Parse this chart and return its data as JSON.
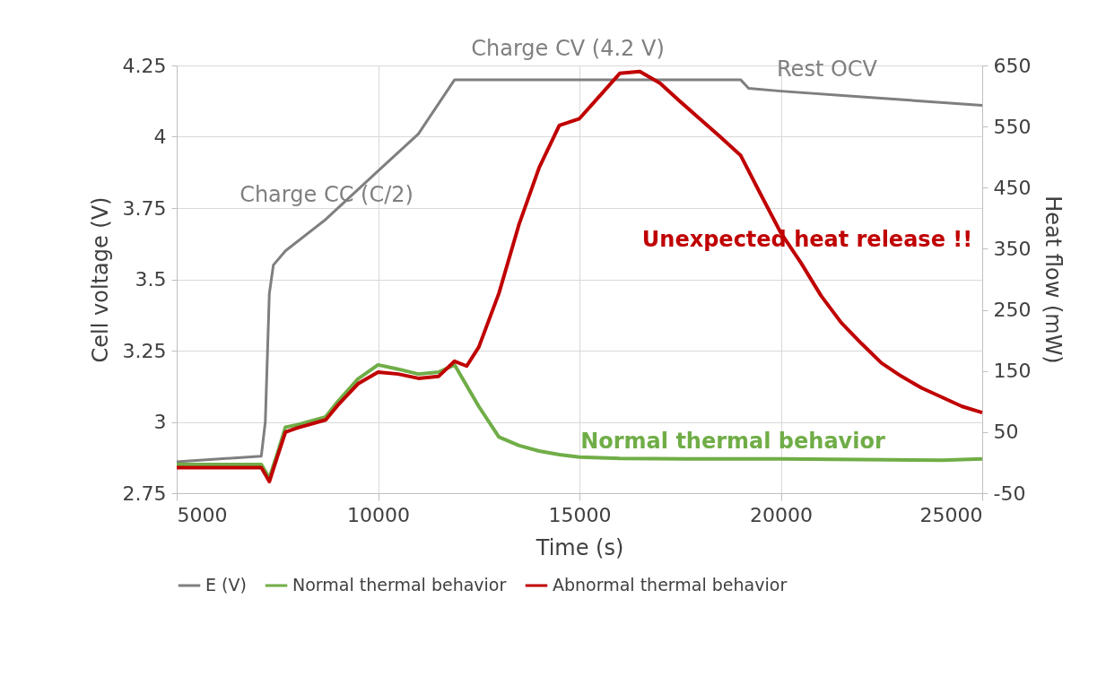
{
  "chart_data": {
    "type": "line",
    "xlabel": "Time (s)",
    "ylabel": "Cell voltage (V)",
    "y2label": "Heat flow (mW)",
    "xlim": [
      5000,
      25000
    ],
    "xticks": [
      5000,
      10000,
      15000,
      20000,
      25000
    ],
    "ylim": [
      2.75,
      4.25
    ],
    "yticks": [
      2.75,
      3,
      3.25,
      3.5,
      3.75,
      4,
      4.25
    ],
    "y2lim": [
      -50,
      650
    ],
    "y2ticks": [
      -50,
      50,
      150,
      250,
      350,
      450,
      550,
      650
    ],
    "grid": true,
    "legend": "bottom",
    "marker": "none",
    "annotations": [
      "Charge CV (4.2 V)",
      "Rest OCV",
      "Charge CC  (C/2)",
      "Unexpected heat release !!",
      "Normal thermal behavior"
    ],
    "series": [
      {
        "name": "E (V)",
        "color": "#7f7f7f",
        "x": [
          5000,
          7100,
          7200,
          7300,
          7400,
          7700,
          8700,
          10000,
          11000,
          11900,
          19000,
          19200,
          20000,
          22000,
          25000
        ],
        "values": [
          2.86,
          2.88,
          3.0,
          3.45,
          3.55,
          3.6,
          3.71,
          3.88,
          4.01,
          4.2,
          4.2,
          4.17,
          4.16,
          4.14,
          4.11
        ]
      },
      {
        "name": "Normal thermal behavior",
        "color": "#70ad47",
        "axis": "y2",
        "x": [
          5000,
          6000,
          7000,
          7100,
          7300,
          7500,
          7700,
          8000,
          8700,
          9000,
          9500,
          10000,
          10500,
          11000,
          11500,
          11900,
          12500,
          13000,
          13500,
          14000,
          14500,
          15000,
          16000,
          18000,
          20000,
          22000,
          24000,
          25000
        ],
        "values": [
          -3,
          -3,
          -3,
          -3,
          -25,
          15,
          58,
          62,
          75,
          100,
          137,
          160,
          153,
          145,
          148,
          160,
          92,
          42,
          28,
          19,
          13,
          9,
          7,
          6,
          6,
          5,
          4,
          6
        ]
      },
      {
        "name": "Abnormal thermal behavior",
        "color": "#c00000",
        "axis": "y2",
        "x": [
          5000,
          6000,
          7000,
          7100,
          7300,
          7500,
          7700,
          8000,
          8700,
          9000,
          9500,
          10000,
          10500,
          11000,
          11500,
          11900,
          12200,
          12500,
          13000,
          13500,
          14000,
          14500,
          15000,
          15500,
          16000,
          16500,
          17000,
          17500,
          18000,
          18500,
          19000,
          19500,
          20000,
          20500,
          21000,
          21500,
          22000,
          22500,
          23000,
          23500,
          24000,
          24500,
          25000
        ],
        "values": [
          -8,
          -8,
          -8,
          -8,
          -31,
          10,
          50,
          57,
          70,
          94,
          129,
          148,
          145,
          138,
          141,
          166,
          158,
          189,
          277,
          390,
          483,
          552,
          563,
          600,
          637,
          640,
          621,
          591,
          562,
          533,
          503,
          439,
          376,
          327,
          273,
          229,
          195,
          163,
          141,
          122,
          107,
          92,
          82
        ]
      }
    ]
  }
}
